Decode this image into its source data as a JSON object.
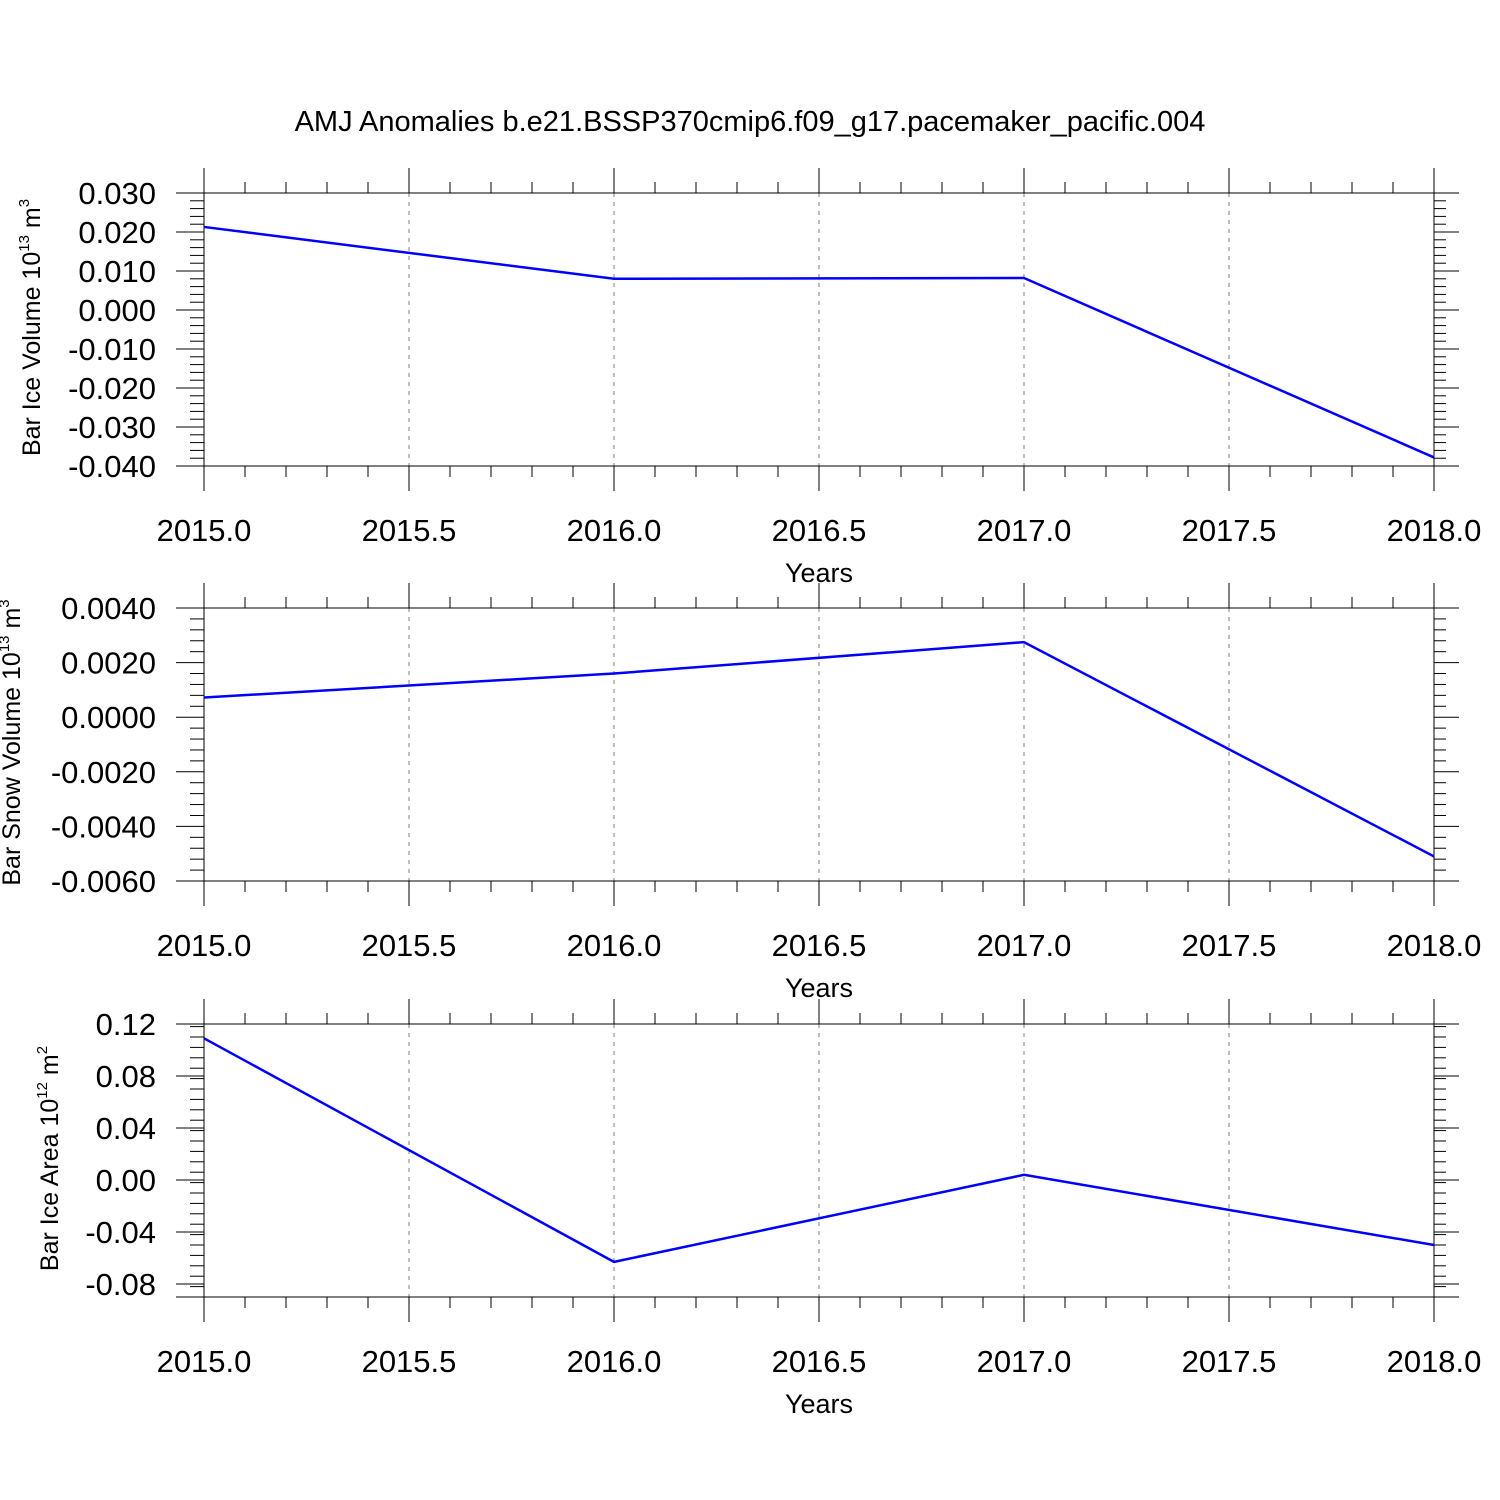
{
  "figure": {
    "title": "AMJ Anomalies b.e21.BSSP370cmip6.f09_g17.pacemaker_pacific.004"
  },
  "colors": {
    "line": "#0000ff",
    "axis": "#000000",
    "grid": "#7f7f7f"
  },
  "chart_data": [
    {
      "type": "line",
      "xlabel": "Years",
      "ylabel": "Bar Ice Volume 10",
      "ylabel_sup": "13",
      "ylabel_unit": " m",
      "ylabel_unit_sup": "3",
      "x": [
        2015.0,
        2016.0,
        2017.0,
        2018.0
      ],
      "series": [
        {
          "values": [
            0.0213,
            0.008,
            0.0082,
            -0.0378
          ]
        }
      ],
      "xlim": [
        2015.0,
        2018.0
      ],
      "ylim": [
        -0.04,
        0.03
      ],
      "xticks": [
        2015.0,
        2015.5,
        2016.0,
        2016.5,
        2017.0,
        2017.5,
        2018.0
      ],
      "xtick_labels": [
        "2015.0",
        "2015.5",
        "2016.0",
        "2016.5",
        "2017.0",
        "2017.5",
        "2018.0"
      ],
      "yticks": [
        0.03,
        0.02,
        0.01,
        0.0,
        -0.01,
        -0.02,
        -0.03,
        -0.04
      ],
      "ytick_labels": [
        "0.030",
        "0.020",
        "0.010",
        "0.000",
        "-0.010",
        "-0.020",
        "-0.030",
        "-0.040"
      ],
      "grid": "vertical dashed"
    },
    {
      "type": "line",
      "xlabel": "Years",
      "ylabel": "Bar Snow Volume 10",
      "ylabel_sup": "13",
      "ylabel_unit": " m",
      "ylabel_unit_sup": "3",
      "x": [
        2015.0,
        2016.0,
        2017.0,
        2018.0
      ],
      "series": [
        {
          "values": [
            0.00072,
            0.0016,
            0.00275,
            -0.0051
          ]
        }
      ],
      "xlim": [
        2015.0,
        2018.0
      ],
      "ylim": [
        -0.006,
        0.004
      ],
      "xticks": [
        2015.0,
        2015.5,
        2016.0,
        2016.5,
        2017.0,
        2017.5,
        2018.0
      ],
      "xtick_labels": [
        "2015.0",
        "2015.5",
        "2016.0",
        "2016.5",
        "2017.0",
        "2017.5",
        "2018.0"
      ],
      "yticks": [
        0.004,
        0.002,
        0.0,
        -0.002,
        -0.004,
        -0.006
      ],
      "ytick_labels": [
        "0.0040",
        "0.0020",
        "0.0000",
        "-0.0020",
        "-0.0040",
        "-0.0060"
      ],
      "grid": "vertical dashed"
    },
    {
      "type": "line",
      "xlabel": "Years",
      "ylabel": "Bar Ice Area 10",
      "ylabel_sup": "12",
      "ylabel_unit": " m",
      "ylabel_unit_sup": "2",
      "x": [
        2015.0,
        2016.0,
        2017.0,
        2018.0
      ],
      "series": [
        {
          "values": [
            0.109,
            -0.063,
            0.004,
            -0.05
          ]
        }
      ],
      "xlim": [
        2015.0,
        2018.0
      ],
      "ylim": [
        -0.09,
        0.12
      ],
      "xticks": [
        2015.0,
        2015.5,
        2016.0,
        2016.5,
        2017.0,
        2017.5,
        2018.0
      ],
      "xtick_labels": [
        "2015.0",
        "2015.5",
        "2016.0",
        "2016.5",
        "2017.0",
        "2017.5",
        "2018.0"
      ],
      "yticks": [
        0.12,
        0.08,
        0.04,
        0.0,
        -0.04,
        -0.08
      ],
      "ytick_labels": [
        "0.12",
        "0.08",
        "0.04",
        "0.00",
        "-0.04",
        "-0.08"
      ],
      "grid": "vertical dashed"
    }
  ]
}
